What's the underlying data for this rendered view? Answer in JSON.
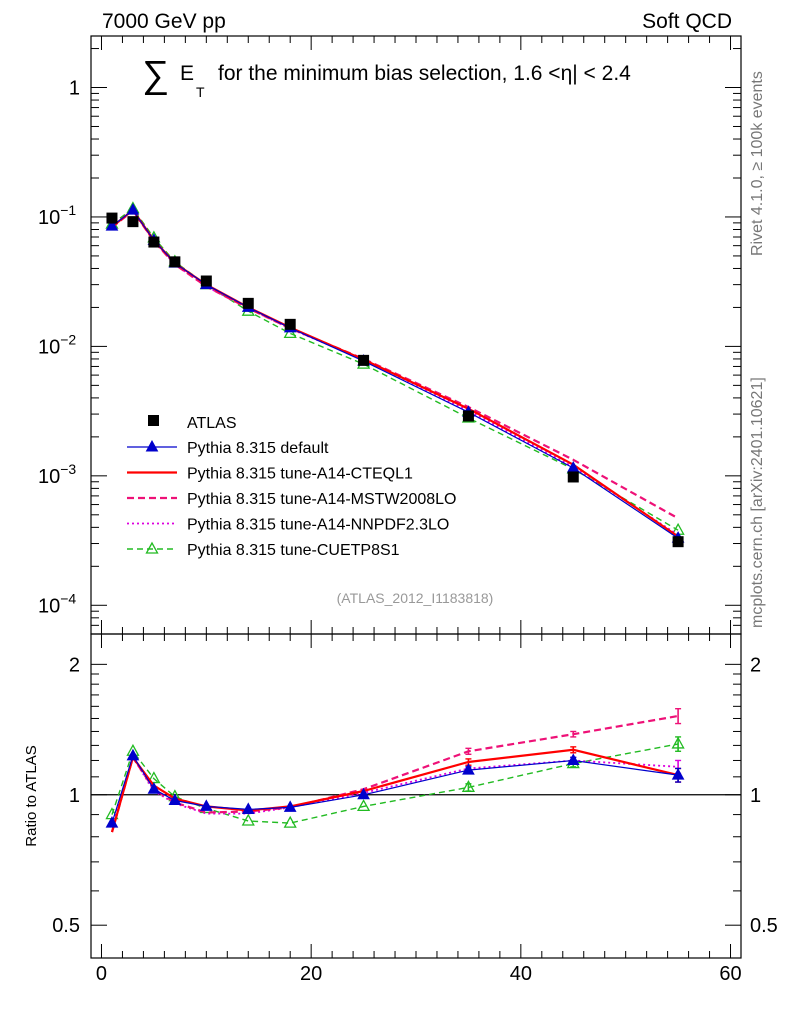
{
  "header": {
    "left": "7000 GeV pp",
    "right": "Soft QCD"
  },
  "title": {
    "sum_symbol": "∑",
    "et_main": "E",
    "et_sub": "T",
    "text": "for the minimum bias selection, 1.6 <η| < 2.4"
  },
  "side_labels": {
    "rivet": "Rivet 4.1.0, ≥ 100k events",
    "mcplots": "mcplots.cern.ch [arXiv:2401.10621]"
  },
  "analysis_id": "(ATLAS_2012_I1183818)",
  "colors": {
    "data": "#000000",
    "default": "#0000cc",
    "cteql1": "#ff0000",
    "mstw": "#ee1177",
    "nnpdf": "#dd00dd",
    "cuetp8s1": "#22bb22"
  },
  "chart_data": [
    {
      "name": "main",
      "type": "line",
      "yscale": "log",
      "xlim": [
        -1,
        61
      ],
      "ylim": [
        6e-05,
        2.5
      ],
      "x_ticks": [
        0,
        20,
        40,
        60
      ],
      "y_tick_labels": [
        {
          "value": 1,
          "base": "1",
          "exp": ""
        },
        {
          "value": 0.1,
          "base": "10",
          "exp": "−1"
        },
        {
          "value": 0.01,
          "base": "10",
          "exp": "−2"
        },
        {
          "value": 0.001,
          "base": "10",
          "exp": "−3"
        },
        {
          "value": 0.0001,
          "base": "10",
          "exp": "−4"
        }
      ],
      "data": {
        "name": "ATLAS",
        "x": [
          1,
          3,
          5,
          7,
          10,
          14,
          18,
          25,
          35,
          45,
          55
        ],
        "y": [
          0.098,
          0.092,
          0.064,
          0.045,
          0.032,
          0.0215,
          0.0148,
          0.0078,
          0.0029,
          0.00098,
          0.00031
        ]
      },
      "series": [
        {
          "name": "Pythia 8.315 default",
          "key": "default",
          "style": "solid-triangle",
          "y": [
            0.085,
            0.113,
            0.066,
            0.044,
            0.03,
            0.02,
            0.0139,
            0.0077,
            0.0031,
            0.00115,
            0.00033
          ]
        },
        {
          "name": "Pythia 8.315 tune-A14-CTEQL1",
          "key": "cteql1",
          "style": "solid-thick",
          "y": [
            0.084,
            0.113,
            0.066,
            0.044,
            0.03,
            0.02,
            0.014,
            0.0079,
            0.0033,
            0.00122,
            0.00034
          ]
        },
        {
          "name": "Pythia 8.315 tune-A14-MSTW2008LO",
          "key": "mstw",
          "style": "dashed",
          "y": [
            0.083,
            0.112,
            0.065,
            0.043,
            0.029,
            0.0197,
            0.0138,
            0.008,
            0.0034,
            0.00133,
            0.00047
          ]
        },
        {
          "name": "Pythia 8.315 tune-A14-NNPDF2.3LO",
          "key": "nnpdf",
          "style": "dotted",
          "y": [
            0.085,
            0.112,
            0.065,
            0.043,
            0.029,
            0.0197,
            0.0137,
            0.0079,
            0.0032,
            0.00117,
            0.00035
          ]
        },
        {
          "name": "Pythia 8.315 tune-CUETP8S1",
          "key": "cuetp8s1",
          "style": "dashed-open-triangle",
          "y": [
            0.088,
            0.116,
            0.069,
            0.045,
            0.03,
            0.0187,
            0.0126,
            0.0073,
            0.0028,
            0.00113,
            0.00038
          ]
        }
      ]
    },
    {
      "name": "ratio",
      "type": "line",
      "yscale": "log",
      "xlim": [
        -1,
        61
      ],
      "ylim": [
        0.42,
        2.35
      ],
      "ylabel": "Ratio to ATLAS",
      "x_ticks": [
        0,
        20,
        40,
        60
      ],
      "y_tick_labels": [
        {
          "value": 0.5,
          "label": "0.5"
        },
        {
          "value": 1,
          "label": "1"
        },
        {
          "value": 2,
          "label": "2"
        }
      ],
      "x": [
        1,
        3,
        5,
        7,
        10,
        14,
        18,
        25,
        35,
        45,
        55
      ],
      "series": [
        {
          "key": "default",
          "y": [
            0.86,
            1.23,
            1.03,
            0.97,
            0.94,
            0.925,
            0.935,
            1.0,
            1.14,
            1.2,
            1.11
          ]
        },
        {
          "key": "cteql1",
          "y": [
            0.82,
            1.22,
            1.05,
            0.98,
            0.94,
            0.92,
            0.94,
            1.02,
            1.19,
            1.27,
            1.11
          ]
        },
        {
          "key": "mstw",
          "y": [
            0.82,
            1.22,
            1.03,
            0.96,
            0.91,
            0.915,
            0.935,
            1.03,
            1.26,
            1.38,
            1.52
          ]
        },
        {
          "key": "nnpdf",
          "y": [
            0.85,
            1.22,
            1.02,
            0.955,
            0.905,
            0.905,
            0.935,
            1.01,
            1.15,
            1.2,
            1.16
          ]
        },
        {
          "key": "cuetp8s1",
          "y": [
            0.9,
            1.26,
            1.09,
            0.99,
            0.93,
            0.87,
            0.86,
            0.94,
            1.04,
            1.18,
            1.31
          ]
        }
      ],
      "errors": {
        "mstw_last": 0.06,
        "cuetp8s1_last": 0.05,
        "last_common": 0.04
      }
    }
  ]
}
